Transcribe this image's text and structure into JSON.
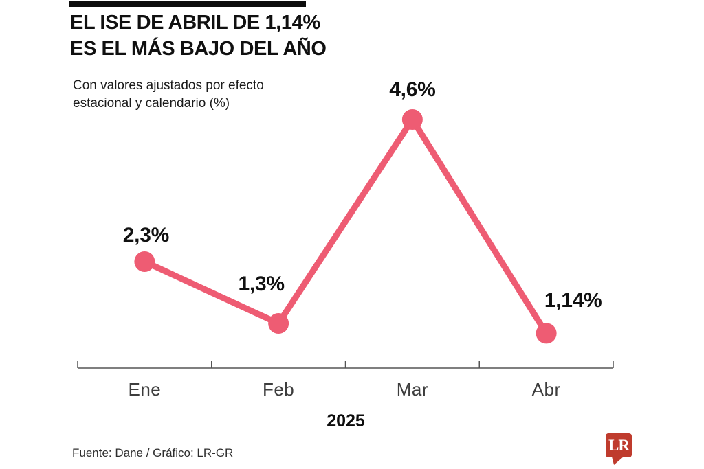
{
  "header": {
    "title_line1": "EL ISE DE ABRIL DE 1,14%",
    "title_line2": "ES EL MÁS BAJO DEL AÑO",
    "subtitle_line1": "Con valores ajustados por efecto",
    "subtitle_line2": "estacional y calendario (%)"
  },
  "chart_data": {
    "type": "line",
    "categories": [
      "Ene",
      "Feb",
      "Mar",
      "Abr"
    ],
    "values": [
      2.3,
      1.3,
      4.6,
      1.14
    ],
    "value_labels": [
      "2,3%",
      "1,3%",
      "4,6%",
      "1,14%"
    ],
    "x_axis_label": "2025",
    "ylabel": "",
    "ylim": [
      0.56,
      5.2
    ],
    "grid": false,
    "legend": false,
    "line_color": "#ee5c73",
    "axis_color": "#555555",
    "value_label_color": "#111111"
  },
  "footer": {
    "source": "Fuente: Dane / Gráfico: LR-GR",
    "logo_text": "LR",
    "logo_color": "#bf3b2d"
  }
}
